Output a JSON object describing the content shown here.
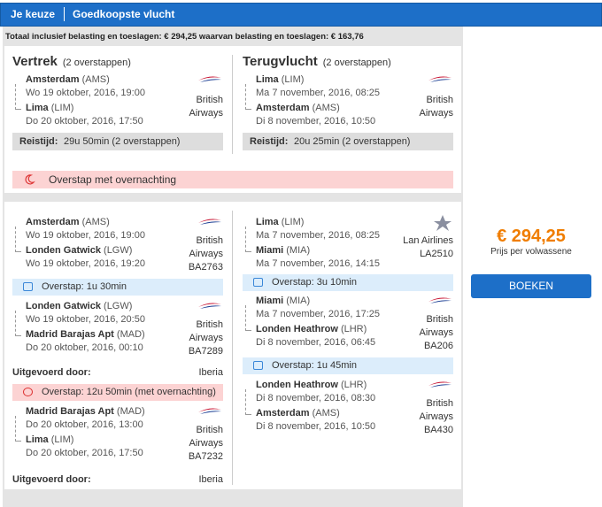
{
  "header": {
    "tabs": [
      "Je keuze",
      "Goedkoopste vlucht"
    ]
  },
  "summary": "Totaal inclusief belasting en toeslagen: € 294,25 waarvan belasting en toeslagen: € 163,76",
  "overview": [
    {
      "title": "Vertrek",
      "stops": "(2 overstappen)",
      "segment": {
        "from": {
          "city": "Amsterdam",
          "code": "(AMS)",
          "time": "Wo 19 oktober, 2016, 19:00"
        },
        "to": {
          "city": "Lima",
          "code": "(LIM)",
          "time": "Do 20 oktober, 2016, 17:50"
        },
        "airline": [
          "British",
          "Airways"
        ]
      },
      "duration_label": "Reistijd:",
      "duration": "29u 50min (2 overstappen)"
    },
    {
      "title": "Terugvlucht",
      "stops": "(2 overstappen)",
      "segment": {
        "from": {
          "city": "Lima",
          "code": "(LIM)",
          "time": "Ma 7 november, 2016, 08:25"
        },
        "to": {
          "city": "Amsterdam",
          "code": "(AMS)",
          "time": "Di 8 november, 2016, 10:50"
        },
        "airline": [
          "British",
          "Airways"
        ]
      },
      "duration_label": "Reistijd:",
      "duration": "20u 25min (2 overstappen)"
    }
  ],
  "overnight": "Overstap met overnachting",
  "details": [
    {
      "items": [
        {
          "kind": "segment",
          "from": {
            "city": "Amsterdam",
            "code": "(AMS)",
            "time": "Wo 19 oktober, 2016, 19:00"
          },
          "to": {
            "city": "Londen Gatwick",
            "code": "(LGW)",
            "time": "Wo 19 oktober, 2016, 19:20"
          },
          "airline": [
            "British",
            "Airways",
            "BA2763"
          ]
        },
        {
          "kind": "layover",
          "text": "Overstap: 1u 30min"
        },
        {
          "kind": "segment",
          "from": {
            "city": "Londen Gatwick",
            "code": "(LGW)",
            "time": "Wo 19 oktober, 2016, 20:50"
          },
          "to": {
            "city": "Madrid Barajas Apt",
            "code": "(MAD)",
            "time": "Do 20 oktober, 2016, 00:10"
          },
          "airline": [
            "British",
            "Airways",
            "BA7289"
          ]
        },
        {
          "kind": "operated",
          "label": "Uitgevoerd door:",
          "value": "Iberia"
        },
        {
          "kind": "overnight",
          "text": "Overstap: 12u 50min  (met overnachting)"
        },
        {
          "kind": "segment",
          "from": {
            "city": "Madrid Barajas Apt",
            "code": "(MAD)",
            "time": "Do 20 oktober, 2016, 13:00"
          },
          "to": {
            "city": "Lima",
            "code": "(LIM)",
            "time": "Do 20 oktober, 2016, 17:50"
          },
          "airline": [
            "British",
            "Airways",
            "BA7232"
          ]
        },
        {
          "kind": "operated",
          "label": "Uitgevoerd door:",
          "value": "Iberia"
        }
      ]
    },
    {
      "items": [
        {
          "kind": "segment",
          "logo": "lan",
          "from": {
            "city": "Lima",
            "code": "(LIM)",
            "time": "Ma 7 november, 2016, 08:25"
          },
          "to": {
            "city": "Miami",
            "code": "(MIA)",
            "time": "Ma 7 november, 2016, 14:15"
          },
          "airline": [
            "Lan Airlines",
            "LA2510"
          ]
        },
        {
          "kind": "layover",
          "text": "Overstap: 3u 10min"
        },
        {
          "kind": "segment",
          "from": {
            "city": "Miami",
            "code": "(MIA)",
            "time": "Ma 7 november, 2016, 17:25"
          },
          "to": {
            "city": "Londen Heathrow",
            "code": "(LHR)",
            "time": "Di 8 november, 2016, 06:45"
          },
          "airline": [
            "British",
            "Airways",
            "BA206"
          ]
        },
        {
          "kind": "layover",
          "text": "Overstap: 1u 45min"
        },
        {
          "kind": "segment",
          "from": {
            "city": "Londen Heathrow",
            "code": "(LHR)",
            "time": "Di 8 november, 2016, 08:30"
          },
          "to": {
            "city": "Amsterdam",
            "code": "(AMS)",
            "time": "Di 8 november, 2016, 10:50"
          },
          "airline": [
            "British",
            "Airways",
            "BA430"
          ]
        }
      ]
    }
  ],
  "price": {
    "amount": "€ 294,25",
    "note": "Prijs per volwassene",
    "button": "BOEKEN"
  }
}
